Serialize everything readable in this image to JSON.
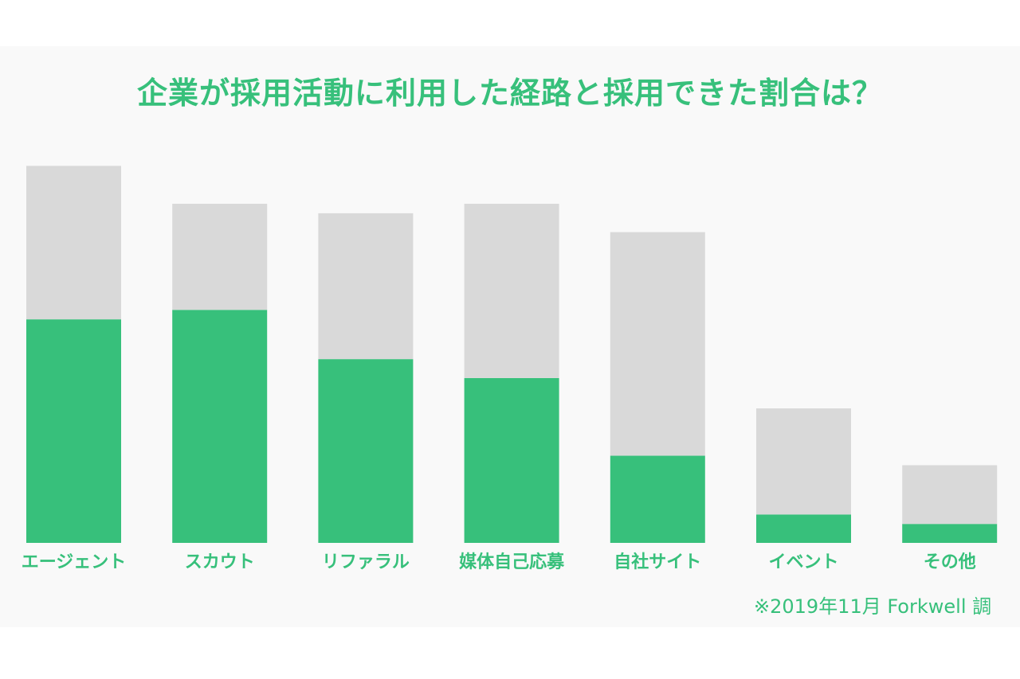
{
  "colors": {
    "accent": "#37c07b",
    "total_bar": "#d9d9d9"
  },
  "title": "企業が採用活動に利用した経路と採用できた割合は？",
  "footnote": "※2019年11月 Forkwell 調",
  "chart_data": {
    "type": "bar",
    "stacked": true,
    "title": "企業が採用活動に利用した経路と採用できた割合は？",
    "xlabel": "",
    "ylabel": "",
    "y_axis_visible": false,
    "grid": false,
    "legend": "none",
    "ylim": [
      0,
      100
    ],
    "categories": [
      "エージェント",
      "スカウト",
      "リファラル",
      "媒体自己応募",
      "自社サイト",
      "イベント",
      "その他"
    ],
    "series": [
      {
        "values": [
          59,
          61.5,
          48.5,
          43.5,
          23,
          7.5,
          5
        ],
        "color": "#37c07b"
      },
      {
        "values": [
          40.5,
          28,
          38.5,
          46,
          59,
          28,
          15.5
        ],
        "color": "#d9d9d9"
      }
    ],
    "totals": [
      99.5,
      89.5,
      87,
      89.5,
      82,
      35.5,
      20.5
    ]
  }
}
